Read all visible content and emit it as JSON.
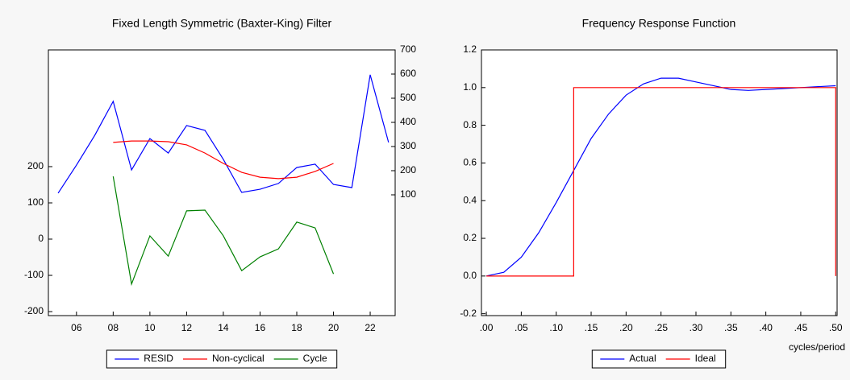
{
  "chart_data": [
    {
      "type": "line",
      "title": "Fixed Length Symmetric (Baxter-King) Filter",
      "x": [
        5,
        6,
        7,
        8,
        9,
        10,
        11,
        12,
        13,
        14,
        15,
        16,
        17,
        18,
        19,
        20,
        21,
        22,
        23
      ],
      "xlim": [
        4.47,
        23.36
      ],
      "xticks": [
        {
          "value": 6,
          "label": "06"
        },
        {
          "value": 8,
          "label": "08"
        },
        {
          "value": 10,
          "label": "10"
        },
        {
          "value": 12,
          "label": "12"
        },
        {
          "value": 14,
          "label": "14"
        },
        {
          "value": 16,
          "label": "16"
        },
        {
          "value": 18,
          "label": "18"
        },
        {
          "value": 20,
          "label": "20"
        },
        {
          "value": 22,
          "label": "22"
        }
      ],
      "ylim": [
        -211,
        522
      ],
      "yticks": [
        -200,
        -100,
        0,
        100,
        200
      ],
      "y2lim": [
        -400,
        700
      ],
      "y2ticks": [
        100,
        200,
        300,
        400,
        500,
        600,
        700
      ],
      "legend": "bottom",
      "series": [
        {
          "name": "RESID",
          "color": "#0000ff",
          "axis": "y2",
          "values": [
            107,
            223,
            347,
            487,
            203,
            333,
            273,
            387,
            367,
            247,
            110,
            123,
            147,
            213,
            227,
            143,
            130,
            597,
            317
          ]
        },
        {
          "name": "Non-cyclical",
          "color": "#ff0000",
          "axis": "y2",
          "values": [
            null,
            null,
            null,
            317,
            323,
            323,
            320,
            307,
            273,
            230,
            193,
            173,
            167,
            173,
            197,
            230,
            null,
            null,
            null
          ]
        },
        {
          "name": "Cycle",
          "color": "#008000",
          "axis": "y",
          "values": [
            null,
            null,
            null,
            173,
            -124,
            9,
            -47,
            78,
            80,
            9,
            -87,
            -49,
            -27,
            47,
            31,
            -96,
            null,
            null,
            null
          ]
        }
      ]
    },
    {
      "type": "line",
      "title": "Frequency Response Function",
      "xlabel": "cycles/period",
      "xlim": [
        -0.007,
        0.502
      ],
      "xticks": [
        {
          "value": 0,
          "label": ".00"
        },
        {
          "value": 0.05,
          "label": ".05"
        },
        {
          "value": 0.1,
          "label": ".10"
        },
        {
          "value": 0.15,
          "label": ".15"
        },
        {
          "value": 0.2,
          "label": ".20"
        },
        {
          "value": 0.25,
          "label": ".25"
        },
        {
          "value": 0.3,
          "label": ".30"
        },
        {
          "value": 0.35,
          "label": ".35"
        },
        {
          "value": 0.4,
          "label": ".40"
        },
        {
          "value": 0.45,
          "label": ".45"
        },
        {
          "value": 0.5,
          "label": ".50"
        }
      ],
      "ylim": [
        -0.21,
        1.2
      ],
      "yticks": [
        -0.2,
        {
          "value": 0,
          "label": "0.0"
        },
        0.2,
        0.4,
        0.6,
        0.8,
        {
          "value": 1,
          "label": "1.0"
        },
        1.2
      ],
      "legend": "bottom",
      "series": [
        {
          "name": "Actual",
          "color": "#0000ff",
          "x": [
            0,
            0.025,
            0.05,
            0.075,
            0.1,
            0.125,
            0.15,
            0.175,
            0.2,
            0.225,
            0.25,
            0.275,
            0.3,
            0.325,
            0.35,
            0.375,
            0.4,
            0.425,
            0.45,
            0.475,
            0.5
          ],
          "values": [
            0,
            0.02,
            0.1,
            0.23,
            0.39,
            0.56,
            0.73,
            0.86,
            0.96,
            1.02,
            1.05,
            1.05,
            1.03,
            1.01,
            0.99,
            0.985,
            0.99,
            0.995,
            1.0,
            1.005,
            1.01
          ]
        },
        {
          "name": "Ideal",
          "color": "#ff0000",
          "x": [
            0,
            0.125,
            0.125,
            0.5,
            0.5
          ],
          "values": [
            0,
            0,
            1,
            1,
            0
          ]
        }
      ]
    }
  ]
}
